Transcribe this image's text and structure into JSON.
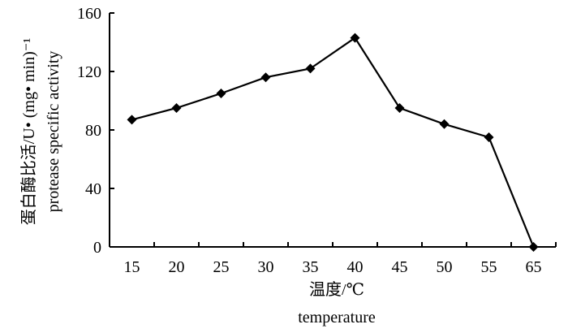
{
  "chart_data": {
    "type": "line",
    "x": [
      15,
      20,
      25,
      30,
      35,
      40,
      45,
      50,
      55,
      65
    ],
    "categories": [
      "15",
      "20",
      "25",
      "30",
      "35",
      "40",
      "45",
      "50",
      "55",
      "65"
    ],
    "series": [
      {
        "values": [
          87,
          95,
          105,
          116,
          122,
          143,
          95,
          84,
          75,
          0
        ]
      }
    ],
    "yticks": [
      "0",
      "40",
      "80",
      "120",
      "160"
    ],
    "ylim": [
      0,
      160
    ],
    "xlabel": "温度/℃",
    "xlabel_en": "temperature",
    "ylabel": "蛋白酶比活/U• (mg• min)⁻¹",
    "ylabel_en": "protease specific activity",
    "grid": false,
    "marker": "diamond",
    "colors": {
      "line": "#000000",
      "axis": "#000000"
    }
  }
}
